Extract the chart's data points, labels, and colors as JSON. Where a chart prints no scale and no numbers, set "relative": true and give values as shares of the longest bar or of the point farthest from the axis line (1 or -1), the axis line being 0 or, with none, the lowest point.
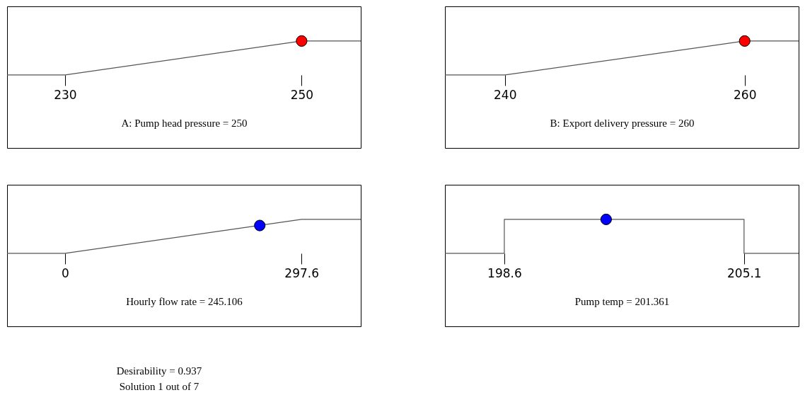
{
  "chart_data": [
    {
      "type": "line",
      "relative": true,
      "xlabel": "A: Pump head pressure = 250",
      "xlim": [
        225.1,
        255.0
      ],
      "xticks": [
        230,
        250
      ],
      "grid": false,
      "series": [
        {
          "color": "#555555",
          "x": [
            225.1,
            230,
            250,
            255.0
          ],
          "values": [
            0,
            0,
            1,
            1
          ]
        },
        {
          "type": "scatter",
          "color": "#ff0000",
          "x": [
            250
          ],
          "values": [
            1
          ]
        }
      ]
    },
    {
      "type": "line",
      "relative": true,
      "xlabel": "B: Export delivery pressure = 260",
      "xlim": [
        235.0,
        264.5
      ],
      "xticks": [
        240,
        260
      ],
      "grid": false,
      "series": [
        {
          "color": "#555555",
          "x": [
            235.0,
            240,
            260,
            264.5
          ],
          "values": [
            0,
            0,
            1,
            1
          ]
        },
        {
          "type": "scatter",
          "color": "#ff0000",
          "x": [
            260
          ],
          "values": [
            1
          ]
        }
      ]
    },
    {
      "type": "line",
      "relative": true,
      "xlabel": "Hourly flow rate = 245.106",
      "xlim": [
        -72.9,
        372.2
      ],
      "xticks": [
        0,
        297.6
      ],
      "grid": false,
      "annotations": [
        "Desirability = 0.937",
        "Solution 1 out of 7"
      ],
      "series": [
        {
          "color": "#555555",
          "x": [
            -72.9,
            0,
            297.6,
            372.2
          ],
          "values": [
            0,
            0,
            1,
            1
          ]
        },
        {
          "type": "scatter",
          "color": "#0000ff",
          "x": [
            245.106
          ],
          "values": [
            0.82
          ]
        }
      ]
    },
    {
      "type": "line",
      "relative": true,
      "xlabel": "Pump temp = 201.361",
      "xlim": [
        196.99,
        206.58
      ],
      "xticks": [
        198.6,
        205.1
      ],
      "grid": false,
      "series": [
        {
          "color": "#555555",
          "x": [
            196.99,
            198.6,
            198.6,
            205.1,
            205.1,
            206.58
          ],
          "values": [
            0,
            0,
            1,
            1,
            0,
            0
          ]
        },
        {
          "type": "scatter",
          "color": "#0000ff",
          "x": [
            201.361
          ],
          "values": [
            1
          ]
        }
      ]
    }
  ]
}
